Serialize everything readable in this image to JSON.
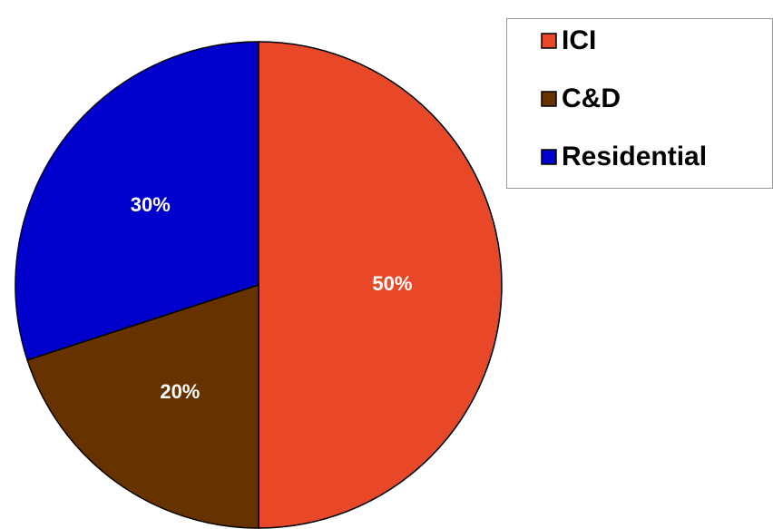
{
  "chart_data": {
    "type": "pie",
    "categories": [
      "ICI",
      "C&D",
      "Residential"
    ],
    "values": [
      50,
      20,
      30
    ],
    "value_labels": [
      "50%",
      "20%",
      "30%"
    ],
    "colors": [
      "#e84828",
      "#663300",
      "#0000cc"
    ],
    "legend": "top-right"
  }
}
